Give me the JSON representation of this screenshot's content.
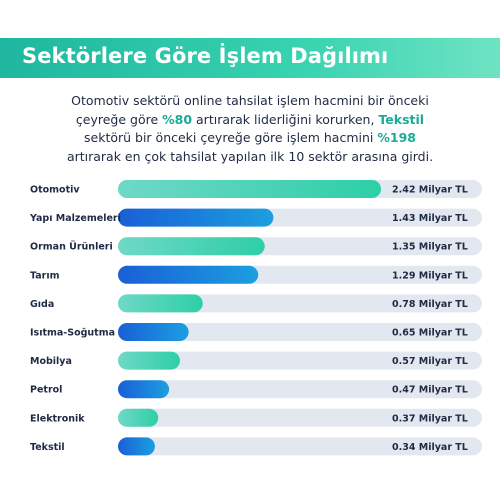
{
  "header": {
    "title": "Sektörlere Göre İşlem Dağılımı"
  },
  "intro": {
    "p1": "Otomotiv sektörü online tahsilat işlem hacmini bir önceki çeyreğe göre ",
    "h1": "%80",
    "p2": " artırarak liderliğini korurken, ",
    "h2": "Tekstil",
    "p3": " sektörü bir önceki çeyreğe göre işlem hacmini ",
    "h3": "%198",
    "p4": " artırarak en çok tahsilat yapılan ilk 10 sektör arasına girdi."
  },
  "colors": {
    "accent": "#1aab96",
    "track": "#e3e7ef",
    "bar_teal": [
      "#6fd8c8",
      "#2ecfa6"
    ],
    "bar_blue": [
      "#1a5fd6",
      "#1b9fe0"
    ]
  },
  "chart_data": {
    "type": "bar",
    "orientation": "horizontal",
    "categories": [
      "Otomotiv",
      "Yapı Malzemeleri",
      "Orman Ürünleri",
      "Tarım",
      "Gıda",
      "Isıtma-Soğutma",
      "Mobilya",
      "Petrol",
      "Elektronik",
      "Tekstil"
    ],
    "values": [
      2.42,
      1.43,
      1.35,
      1.29,
      0.78,
      0.65,
      0.57,
      0.47,
      0.37,
      0.34
    ],
    "value_labels": [
      "2.42 Milyar TL",
      "1.43 Milyar TL",
      "1.35 Milyar TL",
      "1.29 Milyar TL",
      "0.78 Milyar TL",
      "0.65 Milyar TL",
      "0.57 Milyar TL",
      "0.47 Milyar TL",
      "0.37 Milyar TL",
      "0.34 Milyar TL"
    ],
    "bar_styles": [
      "teal",
      "blue",
      "teal",
      "blue",
      "teal",
      "blue",
      "teal",
      "blue",
      "teal",
      "blue"
    ],
    "xlim": [
      0,
      2.42
    ],
    "grid": false,
    "legend": "none"
  }
}
